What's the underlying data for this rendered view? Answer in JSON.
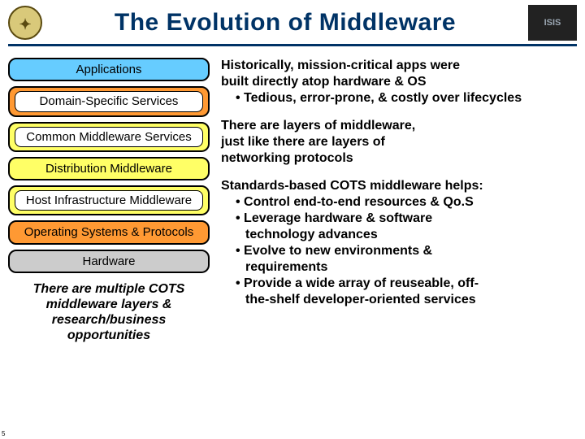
{
  "colors": {
    "rule": "#003366",
    "title": "#003366",
    "logo_left_bg": "#d9c97a",
    "logo_left_border": "#5a4a10",
    "logo_right_bg": "#222222",
    "logo_right_fg": "#9aa6b2",
    "layer_app": "#66ccff",
    "layer_domain": "#ff9933",
    "layer_common": "#ffff66",
    "layer_dist": "#ffff66",
    "layer_host": "#ffff66",
    "layer_os": "#ff9933",
    "layer_hw": "#cccccc",
    "text": "#000000"
  },
  "header": {
    "title": "The Evolution of Middleware",
    "left_logo_text": "✦",
    "right_logo_text": "ISIS"
  },
  "layers": [
    {
      "key": "app",
      "label": "Applications",
      "framed": false
    },
    {
      "key": "domain",
      "label": "Domain-Specific Services",
      "framed": true
    },
    {
      "key": "common",
      "label": "Common Middleware Services",
      "framed": true
    },
    {
      "key": "dist",
      "label": "Distribution Middleware",
      "framed": false
    },
    {
      "key": "host",
      "label": "Host Infrastructure Middleware",
      "framed": true
    },
    {
      "key": "os",
      "label": "Operating Systems & Protocols",
      "framed": false
    },
    {
      "key": "hw",
      "label": "Hardware",
      "framed": false
    }
  ],
  "caption": "There are multiple COTS middleware layers & research/business opportunities",
  "right": {
    "p1": {
      "l1": "Historically, mission-critical apps were",
      "l2": "built directly atop hardware & OS",
      "b1": "• Tedious, error-prone, & costly over lifecycles"
    },
    "p2": {
      "l1": "There are layers of middleware,",
      "l2": "just like there are layers of",
      "l3": "networking protocols"
    },
    "p3": {
      "lead": "Standards-based COTS middleware helps:",
      "b1": "• Control end-to-end resources & Qo.S",
      "b2a": "• Leverage hardware & software",
      "b2b": "technology advances",
      "b3a": "• Evolve to new environments &",
      "b3b": "requirements",
      "b4a": "• Provide a wide array of reuseable, off-",
      "b4b": "the-shelf developer-oriented services"
    }
  },
  "pagenum": "5"
}
